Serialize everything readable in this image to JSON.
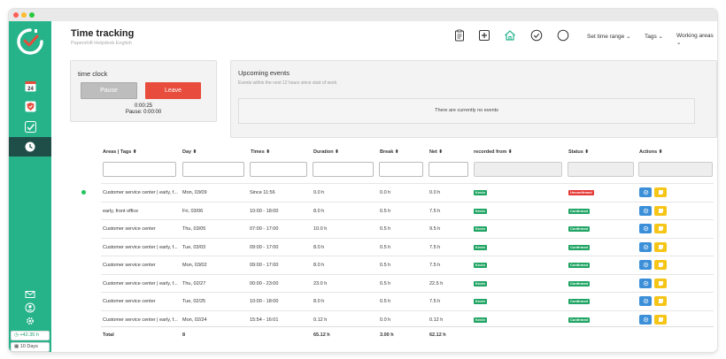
{
  "header": {
    "title": "Time tracking",
    "subtitle": "Papershift Helpdesk English",
    "time_range": "Set time range",
    "tags": "Tags",
    "working_areas": "Working areas"
  },
  "sidebar": {
    "calendar_day": "24",
    "balance": "+42.35 h",
    "days": "10 Days"
  },
  "time_clock": {
    "title": "time clock",
    "pause_label": "Pause",
    "leave_label": "Leave",
    "elapsed": "0:00:25",
    "pause_time": "Pause: 0:00:00"
  },
  "events": {
    "title": "Upcoming events",
    "subtitle": "Events within the next 12 hours since start of work.",
    "empty": "There are currently no events"
  },
  "table": {
    "columns": {
      "area": "Areas | Tags",
      "day": "Day",
      "times": "Times",
      "duration": "Duration",
      "break": "Break",
      "net": "Net",
      "recorded": "recorded from",
      "status": "Status",
      "actions": "Actions"
    },
    "rows": [
      {
        "area": "Customer service center | early, f...",
        "day": "Mon, 03/09",
        "times": "Since 11:56",
        "duration": "0.0 h",
        "break": "0.0 h",
        "net": "0.0 h",
        "recorded": "Kevin",
        "status": "Unconfirmed"
      },
      {
        "area": "early, front office",
        "day": "Fri, 03/06",
        "times": "10:00 - 18:00",
        "duration": "8.0 h",
        "break": "0.5 h",
        "net": "7.5 h",
        "recorded": "Kevin",
        "status": "Confirmed"
      },
      {
        "area": "Customer service center",
        "day": "Thu, 03/05",
        "times": "07:00 - 17:00",
        "duration": "10.0 h",
        "break": "0.5 h",
        "net": "9.5 h",
        "recorded": "Kevin",
        "status": "Confirmed"
      },
      {
        "area": "Customer service center | early, f...",
        "day": "Tue, 03/03",
        "times": "09:00 - 17:00",
        "duration": "8.0 h",
        "break": "0.5 h",
        "net": "7.5 h",
        "recorded": "Kevin",
        "status": "Confirmed"
      },
      {
        "area": "Customer service center",
        "day": "Mon, 03/02",
        "times": "09:00 - 17:00",
        "duration": "8.0 h",
        "break": "0.5 h",
        "net": "7.5 h",
        "recorded": "Kevin",
        "status": "Confirmed"
      },
      {
        "area": "Customer service center | early, f...",
        "day": "Thu, 02/27",
        "times": "00:00 - 23:00",
        "duration": "23.0 h",
        "break": "0.5 h",
        "net": "22.5 h",
        "recorded": "Kevin",
        "status": "Confirmed"
      },
      {
        "area": "Customer service center",
        "day": "Tue, 02/25",
        "times": "10:00 - 18:00",
        "duration": "8.0 h",
        "break": "0.5 h",
        "net": "7.5 h",
        "recorded": "Kevin",
        "status": "Confirmed"
      },
      {
        "area": "Customer service center | early, f...",
        "day": "Mon, 02/24",
        "times": "15:54 - 16:01",
        "duration": "0.12 h",
        "break": "0.0 h",
        "net": "0.12 h",
        "recorded": "Kevin",
        "status": "Confirmed"
      }
    ],
    "total": {
      "label": "Total",
      "count": "8",
      "duration": "65.12 h",
      "break": "3.00 h",
      "net": "62.12 h"
    }
  },
  "colors": {
    "brand": "#26b38a",
    "sidebar_active": "#1f4e48",
    "leave": "#e74c3c",
    "confirmed": "#1fa463",
    "unconfirmed": "#e53935",
    "action_blue": "#3b8fd8",
    "action_yellow": "#f5c518"
  }
}
